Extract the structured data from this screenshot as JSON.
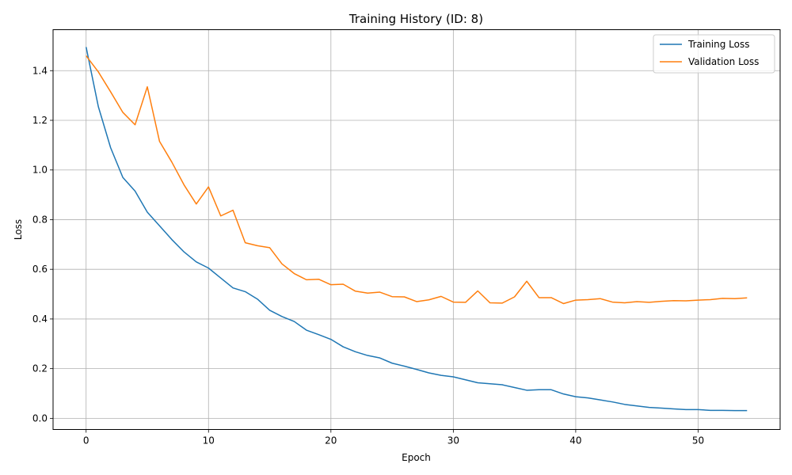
{
  "chart_data": {
    "type": "line",
    "title": "Training History (ID: 8)",
    "xlabel": "Epoch",
    "ylabel": "Loss",
    "xlim": [
      -2.7,
      56.7
    ],
    "ylim": [
      -0.045,
      1.565
    ],
    "xticks": [
      0,
      10,
      20,
      30,
      40,
      50
    ],
    "xtick_labels": [
      "0",
      "10",
      "20",
      "30",
      "40",
      "50"
    ],
    "yticks": [
      0.0,
      0.2,
      0.4,
      0.6,
      0.8,
      1.0,
      1.2,
      1.4
    ],
    "ytick_labels": [
      "0.0",
      "0.2",
      "0.4",
      "0.6",
      "0.8",
      "1.0",
      "1.2",
      "1.4"
    ],
    "grid": true,
    "legend_position": "top-right",
    "x": [
      0,
      1,
      2,
      3,
      4,
      5,
      6,
      7,
      8,
      9,
      10,
      11,
      12,
      13,
      14,
      15,
      16,
      17,
      18,
      19,
      20,
      21,
      22,
      23,
      24,
      25,
      26,
      27,
      28,
      29,
      30,
      31,
      32,
      33,
      34,
      35,
      36,
      37,
      38,
      39,
      40,
      41,
      42,
      43,
      44,
      45,
      46,
      47,
      48,
      49,
      50,
      51,
      52,
      53,
      54
    ],
    "series": [
      {
        "name": "Training Loss",
        "color": "#1f77b4",
        "values": [
          1.495,
          1.255,
          1.09,
          0.97,
          0.915,
          0.83,
          0.775,
          0.72,
          0.67,
          0.63,
          0.605,
          0.565,
          0.525,
          0.51,
          0.48,
          0.435,
          0.41,
          0.39,
          0.355,
          0.337,
          0.318,
          0.288,
          0.268,
          0.253,
          0.243,
          0.222,
          0.21,
          0.197,
          0.183,
          0.173,
          0.167,
          0.155,
          0.143,
          0.139,
          0.135,
          0.124,
          0.113,
          0.115,
          0.115,
          0.098,
          0.087,
          0.082,
          0.074,
          0.066,
          0.056,
          0.05,
          0.044,
          0.041,
          0.038,
          0.035,
          0.035,
          0.032,
          0.032,
          0.031,
          0.031
        ]
      },
      {
        "name": "Validation Loss",
        "color": "#ff7f0e",
        "values": [
          1.46,
          1.395,
          1.315,
          1.232,
          1.182,
          1.335,
          1.115,
          1.032,
          0.94,
          0.863,
          0.932,
          0.815,
          0.838,
          0.707,
          0.695,
          0.687,
          0.622,
          0.583,
          0.558,
          0.56,
          0.538,
          0.54,
          0.512,
          0.504,
          0.508,
          0.49,
          0.489,
          0.47,
          0.477,
          0.491,
          0.468,
          0.467,
          0.513,
          0.465,
          0.464,
          0.489,
          0.552,
          0.486,
          0.486,
          0.462,
          0.476,
          0.478,
          0.482,
          0.468,
          0.465,
          0.47,
          0.467,
          0.471,
          0.474,
          0.473,
          0.476,
          0.478,
          0.483,
          0.482,
          0.485
        ]
      }
    ]
  }
}
